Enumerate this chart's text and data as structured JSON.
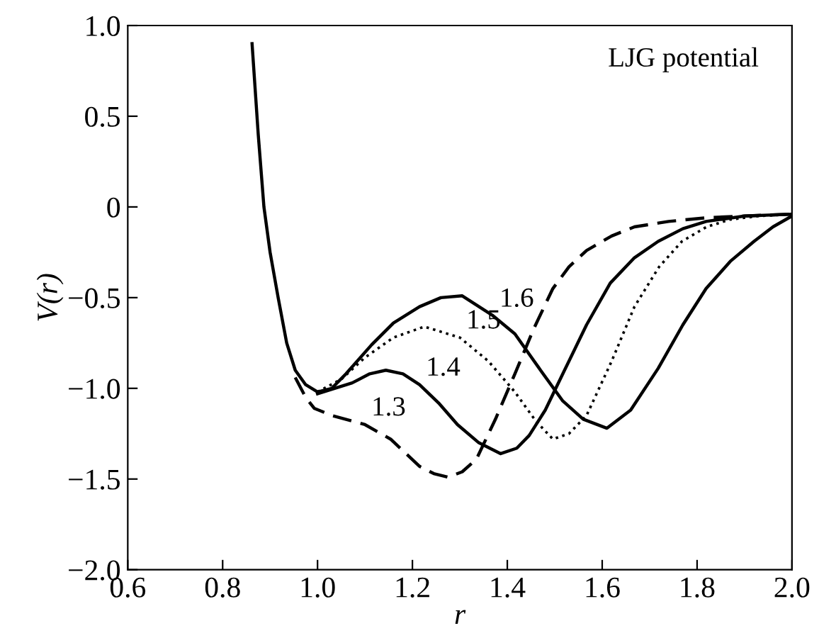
{
  "chart_data": {
    "type": "line",
    "xlabel": "r",
    "ylabel": "V(r)",
    "xlim": [
      0.6,
      2.0
    ],
    "ylim": [
      -2.0,
      1.0
    ],
    "xticks": [
      0.6,
      0.8,
      {
        "value": 1.0,
        "label": "1.0"
      },
      1.2,
      1.4,
      1.6,
      1.8,
      {
        "value": 2.0,
        "label": "2.0"
      }
    ],
    "yticks": [
      {
        "value": -2.0,
        "label": "−2.0"
      },
      {
        "value": -1.5,
        "label": "−1.5"
      },
      {
        "value": -1.0,
        "label": "−1.0"
      },
      {
        "value": -0.5,
        "label": "−0.5"
      },
      0,
      0.5,
      {
        "value": 1.0,
        "label": "1.0"
      }
    ],
    "grid": false,
    "legend": false,
    "series": [
      {
        "color": "#000000",
        "line_style": "solid",
        "x": [
          0.862,
          0.875,
          0.887,
          0.9,
          0.917,
          0.935,
          0.953,
          0.975,
          1.0,
          1.03,
          1.06,
          1.114,
          1.16,
          1.215,
          1.26,
          1.305,
          1.37,
          1.416,
          1.47,
          1.517,
          1.56,
          1.61,
          1.66,
          1.718,
          1.77,
          1.819,
          1.87,
          1.92,
          1.96,
          2.0
        ],
        "values": [
          0.9,
          0.4,
          0.0,
          -0.25,
          -0.5,
          -0.75,
          -0.9,
          -0.98,
          -1.02,
          -1.0,
          -0.92,
          -0.76,
          -0.64,
          -0.55,
          -0.5,
          -0.49,
          -0.6,
          -0.7,
          -0.9,
          -1.07,
          -1.17,
          -1.22,
          -1.12,
          -0.89,
          -0.65,
          -0.45,
          -0.3,
          -0.19,
          -0.11,
          -0.05
        ]
      },
      {
        "color": "#000000",
        "line_style": "dotted",
        "x": [
          1.0,
          1.05,
          1.1,
          1.16,
          1.225,
          1.3,
          1.36,
          1.416,
          1.46,
          1.496,
          1.53,
          1.567,
          1.62,
          1.668,
          1.72,
          1.768,
          1.82,
          1.869,
          1.93,
          2.0
        ],
        "values": [
          -1.02,
          -0.95,
          -0.83,
          -0.72,
          -0.66,
          -0.72,
          -0.85,
          -1.02,
          -1.18,
          -1.28,
          -1.25,
          -1.15,
          -0.85,
          -0.55,
          -0.33,
          -0.19,
          -0.11,
          -0.07,
          -0.05,
          -0.04
        ]
      },
      {
        "color": "#000000",
        "line_style": "solid",
        "x": [
          1.0,
          1.073,
          1.11,
          1.144,
          1.18,
          1.215,
          1.255,
          1.295,
          1.34,
          1.386,
          1.42,
          1.446,
          1.48,
          1.517,
          1.567,
          1.617,
          1.668,
          1.718,
          1.77,
          1.819,
          1.9,
          2.0
        ],
        "values": [
          -1.03,
          -0.97,
          -0.92,
          -0.9,
          -0.92,
          -0.98,
          -1.08,
          -1.2,
          -1.3,
          -1.36,
          -1.33,
          -1.26,
          -1.12,
          -0.92,
          -0.65,
          -0.42,
          -0.28,
          -0.19,
          -0.12,
          -0.08,
          -0.05,
          -0.04
        ]
      },
      {
        "color": "#000000",
        "line_style": "dashed",
        "x": [
          0.953,
          0.975,
          0.993,
          1.03,
          1.073,
          1.1,
          1.154,
          1.215,
          1.245,
          1.275,
          1.305,
          1.335,
          1.375,
          1.416,
          1.456,
          1.496,
          1.53,
          1.567,
          1.62,
          1.668,
          1.74,
          1.819,
          1.9,
          2.0
        ],
        "values": [
          -0.94,
          -1.05,
          -1.11,
          -1.15,
          -1.18,
          -1.2,
          -1.28,
          -1.43,
          -1.47,
          -1.49,
          -1.46,
          -1.39,
          -1.17,
          -0.92,
          -0.67,
          -0.45,
          -0.33,
          -0.24,
          -0.16,
          -0.11,
          -0.08,
          -0.06,
          -0.05,
          -0.04
        ]
      }
    ],
    "annotations": [
      "LJG potential",
      {
        "text": "1.6",
        "x": 1.37,
        "y": -0.6
      },
      {
        "text": "1.5",
        "x": 1.3,
        "y": -0.72
      },
      {
        "text": "1.4",
        "x": 1.215,
        "y": -0.98
      },
      {
        "text": "1.3",
        "x": 1.1,
        "y": -1.2
      }
    ]
  }
}
